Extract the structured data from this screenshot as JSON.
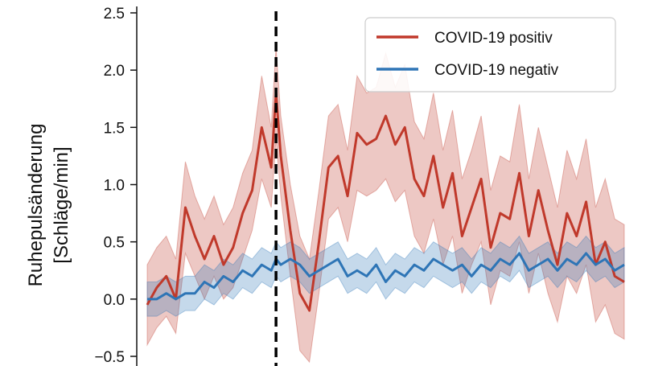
{
  "chart_data": {
    "type": "line",
    "title": "",
    "xlabel": "",
    "ylabel_lines": [
      "Ruhepulsänderung",
      "[Schläge/min]"
    ],
    "ylim": [
      -0.5,
      2.5
    ],
    "yticks": [
      {
        "value": 2.5,
        "label": "2.5"
      },
      {
        "value": 2.0,
        "label": "2.0"
      },
      {
        "value": 1.5,
        "label": "1.5"
      },
      {
        "value": 1.0,
        "label": "1.0"
      },
      {
        "value": 0.5,
        "label": "0.5"
      },
      {
        "value": 0.0,
        "label": "0.0"
      },
      {
        "value": -0.5,
        "label": "−0.5"
      }
    ],
    "grid": false,
    "legend_position": "top-right",
    "marker_line": {
      "x": 27,
      "style": "dashed",
      "color": "#000000"
    },
    "x": [
      0,
      2,
      4,
      6,
      8,
      10,
      12,
      14,
      16,
      18,
      20,
      22,
      24,
      26,
      27,
      28,
      30,
      32,
      34,
      36,
      38,
      40,
      42,
      44,
      46,
      48,
      50,
      52,
      54,
      56,
      58,
      60,
      62,
      64,
      66,
      68,
      70,
      72,
      74,
      76,
      78,
      80,
      82,
      84,
      86,
      88,
      90,
      92,
      94,
      96,
      98,
      100
    ],
    "series": [
      {
        "name": "COVID-19 positiv",
        "color": "#c0392b",
        "values": [
          -0.05,
          0.1,
          0.2,
          0.0,
          0.8,
          0.55,
          0.35,
          0.55,
          0.3,
          0.45,
          0.75,
          0.95,
          1.5,
          1.15,
          1.8,
          1.25,
          0.6,
          0.05,
          -0.1,
          0.5,
          1.15,
          1.25,
          0.9,
          1.45,
          1.35,
          1.4,
          1.6,
          1.35,
          1.5,
          1.05,
          0.9,
          1.25,
          0.8,
          1.1,
          0.55,
          0.8,
          1.05,
          0.45,
          0.75,
          0.7,
          1.1,
          0.55,
          0.95,
          0.6,
          0.3,
          0.75,
          0.55,
          0.85,
          0.3,
          0.5,
          0.2,
          0.15
        ],
        "lower": [
          -0.4,
          -0.25,
          -0.15,
          -0.3,
          0.4,
          0.2,
          0.0,
          0.2,
          0.0,
          0.1,
          0.35,
          0.6,
          1.05,
          0.8,
          1.4,
          0.9,
          0.2,
          -0.45,
          -0.55,
          0.05,
          0.7,
          0.8,
          0.5,
          0.95,
          0.9,
          0.95,
          1.05,
          0.85,
          0.95,
          0.55,
          0.4,
          0.7,
          0.3,
          0.55,
          0.05,
          0.3,
          0.5,
          -0.05,
          0.25,
          0.2,
          0.5,
          0.05,
          0.4,
          0.05,
          -0.2,
          0.2,
          0.05,
          0.3,
          -0.2,
          -0.05,
          -0.3,
          -0.35
        ],
        "upper": [
          0.3,
          0.45,
          0.55,
          0.35,
          1.2,
          0.9,
          0.7,
          0.9,
          0.65,
          0.8,
          1.1,
          1.3,
          1.95,
          1.5,
          2.2,
          1.6,
          1.0,
          0.55,
          0.35,
          0.95,
          1.6,
          1.7,
          1.3,
          1.95,
          1.8,
          1.85,
          2.15,
          1.85,
          2.05,
          1.55,
          1.4,
          1.8,
          1.3,
          1.65,
          1.05,
          1.3,
          1.6,
          0.95,
          1.25,
          1.2,
          1.7,
          1.05,
          1.5,
          1.15,
          0.8,
          1.3,
          1.05,
          1.4,
          0.8,
          1.05,
          0.7,
          0.65
        ]
      },
      {
        "name": "COVID-19 negativ",
        "color": "#2e75b6",
        "values": [
          0.0,
          0.0,
          0.05,
          0.0,
          0.05,
          0.05,
          0.15,
          0.1,
          0.2,
          0.15,
          0.25,
          0.2,
          0.3,
          0.25,
          0.35,
          0.3,
          0.35,
          0.3,
          0.2,
          0.25,
          0.3,
          0.35,
          0.2,
          0.25,
          0.2,
          0.3,
          0.15,
          0.25,
          0.2,
          0.3,
          0.25,
          0.35,
          0.3,
          0.25,
          0.3,
          0.2,
          0.3,
          0.25,
          0.35,
          0.3,
          0.4,
          0.25,
          0.3,
          0.35,
          0.25,
          0.35,
          0.3,
          0.4,
          0.3,
          0.35,
          0.25,
          0.3
        ],
        "lower": [
          -0.15,
          -0.15,
          -0.1,
          -0.15,
          -0.1,
          -0.1,
          0.0,
          -0.05,
          0.05,
          0.0,
          0.1,
          0.05,
          0.15,
          0.1,
          0.2,
          0.15,
          0.2,
          0.15,
          0.05,
          0.1,
          0.15,
          0.2,
          0.05,
          0.1,
          0.05,
          0.15,
          0.0,
          0.1,
          0.05,
          0.15,
          0.1,
          0.2,
          0.15,
          0.1,
          0.15,
          0.05,
          0.15,
          0.1,
          0.2,
          0.15,
          0.25,
          0.1,
          0.15,
          0.2,
          0.1,
          0.2,
          0.15,
          0.25,
          0.15,
          0.2,
          0.1,
          0.15
        ],
        "upper": [
          0.15,
          0.15,
          0.2,
          0.15,
          0.2,
          0.2,
          0.3,
          0.25,
          0.35,
          0.3,
          0.4,
          0.35,
          0.45,
          0.4,
          0.5,
          0.45,
          0.5,
          0.45,
          0.35,
          0.4,
          0.45,
          0.5,
          0.35,
          0.4,
          0.35,
          0.45,
          0.3,
          0.4,
          0.35,
          0.45,
          0.4,
          0.5,
          0.45,
          0.4,
          0.45,
          0.35,
          0.45,
          0.4,
          0.5,
          0.45,
          0.55,
          0.4,
          0.45,
          0.5,
          0.4,
          0.5,
          0.45,
          0.55,
          0.45,
          0.5,
          0.4,
          0.45
        ]
      }
    ]
  }
}
